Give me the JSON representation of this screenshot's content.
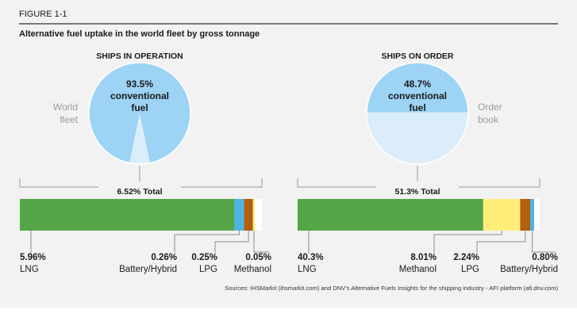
{
  "figure": {
    "number": "FIGURE 1-1",
    "title": "Alternative fuel uptake in the world fleet by gross tonnage",
    "source": "Sources: IHSMarkit (ihsmarkit.com) and DNV's Alternative Fuels Insights for the shipping industry - AFI platform (afi.dnv.com)"
  },
  "colors": {
    "panel_bg": "#f2f2f2",
    "pie_conventional": "#9dd3f5",
    "pie_other": "#dcedfa",
    "LNG": "#55a648",
    "Battery/Hybrid": "#4ab6e8",
    "LPG": "#b35f10",
    "Methanol": "#ffef7a",
    "bar_bg": "#ffffff"
  },
  "chart_data": [
    {
      "type": "pie",
      "title": "SHIPS IN OPERATION",
      "side_label_line1": "World",
      "side_label_line2": "fleet",
      "side_label_position": "left",
      "conventional_percent": "93.5%",
      "conventional_line1": "conventional",
      "conventional_line2": "fuel",
      "slices": [
        {
          "name": "conventional fuel",
          "value": 93.48
        },
        {
          "name": "alternative fuel",
          "value": 6.52
        }
      ]
    },
    {
      "type": "bar",
      "orientation": "horizontal-stacked",
      "total_label": "6.52%  Total",
      "total": 6.52,
      "segment_order": [
        "LNG",
        "Battery/Hybrid",
        "LPG",
        "Methanol"
      ],
      "segments": [
        {
          "name": "LNG",
          "label": "LNG",
          "value": 5.96,
          "value_label": "5.96%"
        },
        {
          "name": "Battery/Hybrid",
          "label": "Battery/Hybrid",
          "value": 0.26,
          "value_label": "0.26%"
        },
        {
          "name": "LPG",
          "label": "LPG",
          "value": 0.25,
          "value_label": "0.25%"
        },
        {
          "name": "Methanol",
          "label": "Methanol",
          "value": 0.05,
          "value_label": "0.05%"
        }
      ]
    },
    {
      "type": "pie",
      "title": "SHIPS ON ORDER",
      "side_label_line1": "Order",
      "side_label_line2": "book",
      "side_label_position": "right",
      "conventional_percent": "48.7%",
      "conventional_line1": "conventional",
      "conventional_line2": "fuel",
      "slices": [
        {
          "name": "conventional fuel",
          "value": 48.7
        },
        {
          "name": "alternative fuel",
          "value": 51.3
        }
      ]
    },
    {
      "type": "bar",
      "orientation": "horizontal-stacked",
      "total_label": "51.3%  Total",
      "total": 51.3,
      "segment_order": [
        "LNG",
        "Methanol",
        "LPG",
        "Battery/Hybrid"
      ],
      "segments": [
        {
          "name": "LNG",
          "label": "LNG",
          "value": 40.3,
          "value_label": "40.3%"
        },
        {
          "name": "Methanol",
          "label": "Methanol",
          "value": 8.01,
          "value_label": "8.01%"
        },
        {
          "name": "LPG",
          "label": "LPG",
          "value": 2.24,
          "value_label": "2.24%"
        },
        {
          "name": "Battery/Hybrid",
          "label": "Battery/Hybrid",
          "value": 0.8,
          "value_label": "0.80%"
        }
      ]
    }
  ]
}
